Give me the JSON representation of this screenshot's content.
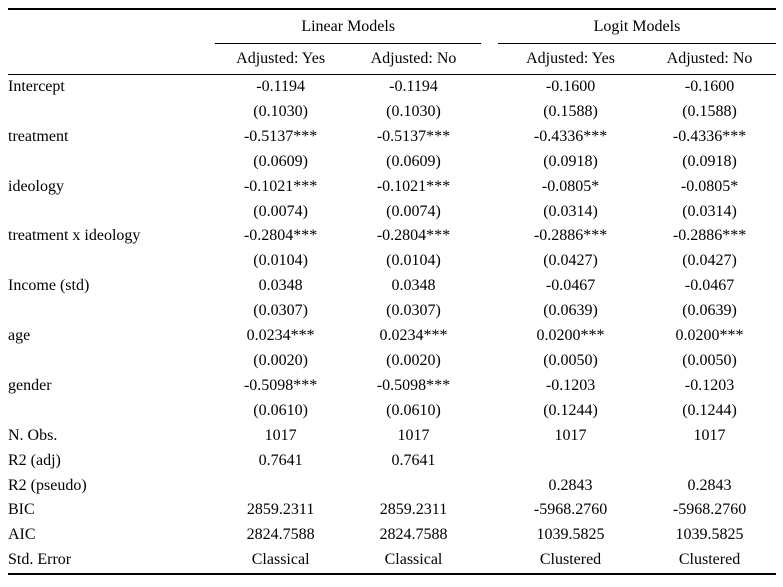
{
  "colors": {
    "text": "#000000",
    "background": "#ffffff",
    "rule": "#000000"
  },
  "table": {
    "group_headers": [
      {
        "label": "Linear Models"
      },
      {
        "label": "Logit Models"
      }
    ],
    "column_headers": [
      "Adjusted: Yes",
      "Adjusted: No",
      "Adjusted: Yes",
      "Adjusted: No"
    ],
    "rows": [
      {
        "label": "Intercept",
        "cells": [
          "-0.1194",
          "-0.1194",
          "-0.1600",
          "-0.1600"
        ]
      },
      {
        "label": "",
        "cells": [
          "(0.1030)",
          "(0.1030)",
          "(0.1588)",
          "(0.1588)"
        ]
      },
      {
        "label": "treatment",
        "cells": [
          "-0.5137***",
          "-0.5137***",
          "-0.4336***",
          "-0.4336***"
        ]
      },
      {
        "label": "",
        "cells": [
          "(0.0609)",
          "(0.0609)",
          "(0.0918)",
          "(0.0918)"
        ]
      },
      {
        "label": "ideology",
        "cells": [
          "-0.1021***",
          "-0.1021***",
          "-0.0805*",
          "-0.0805*"
        ]
      },
      {
        "label": "",
        "cells": [
          "(0.0074)",
          "(0.0074)",
          "(0.0314)",
          "(0.0314)"
        ]
      },
      {
        "label": "treatment x ideology",
        "cells": [
          "-0.2804***",
          "-0.2804***",
          "-0.2886***",
          "-0.2886***"
        ]
      },
      {
        "label": "",
        "cells": [
          "(0.0104)",
          "(0.0104)",
          "(0.0427)",
          "(0.0427)"
        ]
      },
      {
        "label": "Income (std)",
        "cells": [
          "0.0348",
          "0.0348",
          "-0.0467",
          "-0.0467"
        ]
      },
      {
        "label": "",
        "cells": [
          "(0.0307)",
          "(0.0307)",
          "(0.0639)",
          "(0.0639)"
        ]
      },
      {
        "label": "age",
        "cells": [
          "0.0234***",
          "0.0234***",
          "0.0200***",
          "0.0200***"
        ]
      },
      {
        "label": "",
        "cells": [
          "(0.0020)",
          "(0.0020)",
          "(0.0050)",
          "(0.0050)"
        ]
      },
      {
        "label": "gender",
        "cells": [
          "-0.5098***",
          "-0.5098***",
          "-0.1203",
          "-0.1203"
        ]
      },
      {
        "label": "",
        "cells": [
          "(0.0610)",
          "(0.0610)",
          "(0.1244)",
          "(0.1244)"
        ]
      },
      {
        "label": "N. Obs.",
        "cells": [
          "1017",
          "1017",
          "1017",
          "1017"
        ]
      },
      {
        "label": "R2 (adj)",
        "cells": [
          "0.7641",
          "0.7641",
          "",
          ""
        ]
      },
      {
        "label": "R2 (pseudo)",
        "cells": [
          "",
          "",
          "0.2843",
          "0.2843"
        ]
      },
      {
        "label": "BIC",
        "cells": [
          "2859.2311",
          "2859.2311",
          "-5968.2760",
          "-5968.2760"
        ]
      },
      {
        "label": "AIC",
        "cells": [
          "2824.7588",
          "2824.7588",
          "1039.5825",
          "1039.5825"
        ]
      },
      {
        "label": "Std. Error",
        "cells": [
          "Classical",
          "Classical",
          "Clustered",
          "Clustered"
        ]
      }
    ]
  }
}
